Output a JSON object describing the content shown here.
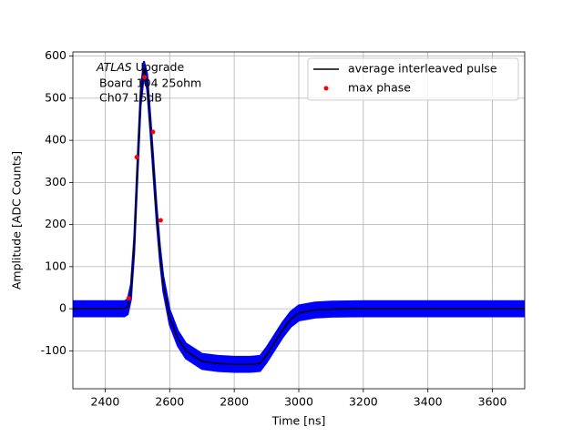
{
  "chart_data": {
    "type": "line",
    "x_label": "Time [ns]",
    "y_label": "Amplitude [ADC Counts]",
    "annotation": {
      "emphasis": "ATLAS",
      "text": "Upgrade",
      "lines": [
        "Board 104 25ohm",
        "Ch07 15dB"
      ]
    },
    "xlim": [
      2300,
      3700
    ],
    "ylim": [
      -190,
      610
    ],
    "xticks": [
      2400,
      2600,
      2800,
      3000,
      3200,
      3400,
      3600
    ],
    "yticks": [
      -100,
      0,
      100,
      200,
      300,
      400,
      500,
      600
    ],
    "grid": true,
    "legend": "upper right",
    "band": {
      "color": "#0000ff",
      "x": [
        2300,
        2460,
        2470,
        2480,
        2490,
        2500,
        2510,
        2520,
        2530,
        2540,
        2550,
        2560,
        2570,
        2580,
        2600,
        2625,
        2650,
        2700,
        2750,
        2800,
        2850,
        2880,
        2900,
        2925,
        2950,
        2975,
        3000,
        3050,
        3100,
        3200,
        3700
      ],
      "upper": [
        18,
        18,
        23,
        58,
        168,
        348,
        518,
        588,
        558,
        458,
        348,
        238,
        148,
        78,
        -2,
        -52,
        -82,
        -107,
        -112,
        -114,
        -114,
        -112,
        -92,
        -62,
        -32,
        -7,
        8,
        15,
        17,
        18,
        18
      ],
      "lower": [
        -18,
        -18,
        -13,
        22,
        132,
        312,
        482,
        552,
        522,
        422,
        312,
        202,
        112,
        42,
        -38,
        -88,
        -118,
        -143,
        -148,
        -150,
        -150,
        -148,
        -128,
        -98,
        -68,
        -43,
        -28,
        -21,
        -19,
        -18,
        -18
      ]
    },
    "series": [
      {
        "name": "average interleaved pulse",
        "type": "line",
        "color": "#000000",
        "x": [
          2300,
          2460,
          2470,
          2480,
          2490,
          2500,
          2510,
          2520,
          2530,
          2540,
          2550,
          2560,
          2570,
          2580,
          2600,
          2625,
          2650,
          2700,
          2750,
          2800,
          2850,
          2880,
          2900,
          2925,
          2950,
          2975,
          3000,
          3050,
          3100,
          3200,
          3700
        ],
        "values": [
          0,
          0,
          5,
          40,
          150,
          330,
          500,
          570,
          540,
          440,
          330,
          220,
          130,
          60,
          -20,
          -70,
          -100,
          -125,
          -130,
          -132,
          -132,
          -130,
          -110,
          -80,
          -50,
          -25,
          -10,
          -3,
          -1,
          0,
          0
        ]
      },
      {
        "name": "max phase",
        "type": "scatter",
        "color": "#ff0000",
        "x": [
          2473,
          2498,
          2522,
          2548,
          2572
        ],
        "values": [
          25,
          360,
          550,
          420,
          210
        ]
      }
    ]
  }
}
